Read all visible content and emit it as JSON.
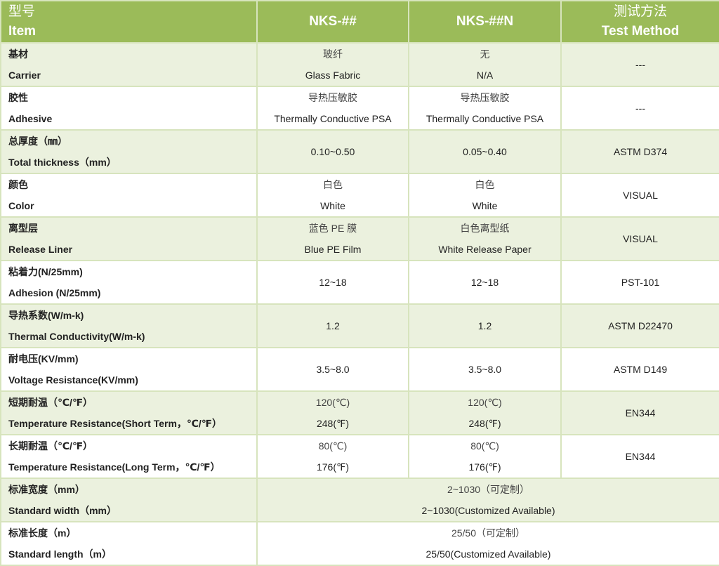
{
  "header": {
    "item_cn": "型号",
    "item_en": "Item",
    "product1": "NKS-##",
    "product2": "NKS-##N",
    "method_cn": "测试方法",
    "method_en": "Test Method"
  },
  "colors": {
    "header_bg": "#9bbb59",
    "row_alt_bg": "#ebf1de",
    "border": "#d7e4bd"
  },
  "rows": [
    {
      "label_cn": "基材",
      "label_en": "Carrier",
      "p1": [
        "玻纤",
        "Glass Fabric"
      ],
      "p2": [
        "无",
        "N/A"
      ],
      "method": "---"
    },
    {
      "label_cn": "胶性",
      "label_en": "Adhesive",
      "p1": [
        "导热压敏胶",
        "Thermally Conductive PSA"
      ],
      "p2": [
        "导热压敏胶",
        "Thermally Conductive PSA"
      ],
      "method": "---"
    },
    {
      "label_cn": "总厚度（㎜）",
      "label_en": "Total thickness（mm）",
      "p1": [
        "0.10~0.50"
      ],
      "p2": [
        "0.05~0.40"
      ],
      "method": "ASTM D374"
    },
    {
      "label_cn": "颜色",
      "label_en": "Color",
      "p1": [
        "白色",
        "White"
      ],
      "p2": [
        "白色",
        "White"
      ],
      "method": "VISUAL"
    },
    {
      "label_cn": "离型层",
      "label_en": "Release Liner",
      "p1": [
        "蓝色 PE 膜",
        "Blue PE Film"
      ],
      "p2": [
        "白色离型纸",
        "White Release Paper"
      ],
      "method": "VISUAL"
    },
    {
      "label_cn": "粘着力(N/25mm)",
      "label_en": "Adhesion (N/25mm)",
      "p1": [
        "12~18"
      ],
      "p2": [
        "12~18"
      ],
      "method": "PST-101"
    },
    {
      "label_cn": "导热系数(W/m-k)",
      "label_en": "Thermal Conductivity(W/m-k)",
      "p1": [
        "1.2"
      ],
      "p2": [
        "1.2"
      ],
      "method": "ASTM D22470"
    },
    {
      "label_cn": "耐电压(KV/mm)",
      "label_en": "Voltage Resistance(KV/mm)",
      "p1": [
        "3.5~8.0"
      ],
      "p2": [
        "3.5~8.0"
      ],
      "method": "ASTM D149"
    },
    {
      "label_cn": "短期耐温（℃/℉）",
      "label_en": "Temperature Resistance(Short Term，℃/℉）",
      "p1": [
        "120(℃)",
        "248(℉)"
      ],
      "p2": [
        "120(℃)",
        "248(℉)"
      ],
      "method": "EN344"
    },
    {
      "label_cn": "长期耐温（℃/℉）",
      "label_en": "Temperature Resistance(Long Term，℃/℉）",
      "p1": [
        "80(℃)",
        "176(℉)"
      ],
      "p2": [
        "80(℃)",
        "176(℉)"
      ],
      "method": "EN344"
    },
    {
      "label_cn": "标准宽度（mm）",
      "label_en": "Standard width（mm）",
      "span": [
        "2~1030（可定制）",
        "2~1030(Customized Available)"
      ]
    },
    {
      "label_cn": "标准长度（m）",
      "label_en": "Standard length（m）",
      "span": [
        "25/50（可定制）",
        "25/50(Customized Available)"
      ]
    }
  ]
}
